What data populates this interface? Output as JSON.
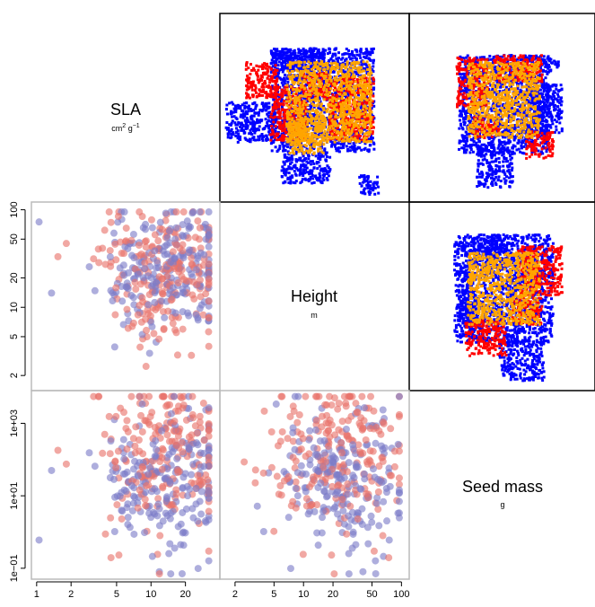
{
  "colors": {
    "group_a": "#E8736B",
    "group_b": "#7C7CC8",
    "trait_space_low": "#0000FF",
    "trait_space_mid": "#FF0000",
    "trait_space_high": "#FFA500",
    "grey_frame": "#BBBBBB",
    "black_frame": "#000000"
  },
  "diagonal": [
    {
      "name": "SLA",
      "unit_base": "cm",
      "unit_sup1": "2",
      "unit_mid": " g",
      "unit_sup2": "−1"
    },
    {
      "name": "Height",
      "unit_base": "m",
      "unit_sup1": "",
      "unit_mid": "",
      "unit_sup2": ""
    },
    {
      "name": "Seed mass",
      "unit_base": "g",
      "unit_sup1": "",
      "unit_mid": "",
      "unit_sup2": ""
    }
  ],
  "axis_ticks": {
    "sla_x": [
      "1",
      "2",
      "5",
      "10",
      "20"
    ],
    "height_x": [
      "2",
      "5",
      "10",
      "20",
      "50",
      "100"
    ],
    "height_y": [
      "100",
      "50",
      "20",
      "10",
      "5",
      "2"
    ],
    "seed_y": [
      "1e+03",
      "1e+01",
      "1e−01"
    ]
  },
  "chart_data": {
    "type": "scatter",
    "title": "",
    "log_axes": true,
    "grid": false,
    "variables": [
      "SLA",
      "Height",
      "Seed mass"
    ],
    "axis_ranges": {
      "SLA": [
        0.9,
        40
      ],
      "Height": [
        1.4,
        120
      ],
      "Seed mass": [
        0.05,
        8000
      ]
    },
    "lower_panels": [
      {
        "x": "SLA",
        "y": "Height",
        "series": "two overlapping point groups (red, blue), approx. 420 points, SLA mostly 5–35, Height mostly 5–60"
      },
      {
        "x": "SLA",
        "y": "Seed mass",
        "series": "two overlapping point groups (red, blue), approx. 420 points, SLA mostly 5–35, Seed mass 0.1–3000"
      },
      {
        "x": "Height",
        "y": "Seed mass",
        "series": "two overlapping point groups (red, blue), approx. 420 points, Height mostly 5–60, Seed mass 0.1–3000"
      }
    ],
    "upper_panels": [
      {
        "pair": [
          "SLA",
          "Height"
        ],
        "style": "dense trait-space point cloud, blue periphery, red and orange interior"
      },
      {
        "pair": [
          "SLA",
          "Seed mass"
        ],
        "style": "dense trait-space point cloud, blue periphery, red and orange interior"
      },
      {
        "pair": [
          "Height",
          "Seed mass"
        ],
        "style": "dense trait-space point cloud, blue periphery, red and orange interior"
      }
    ]
  }
}
